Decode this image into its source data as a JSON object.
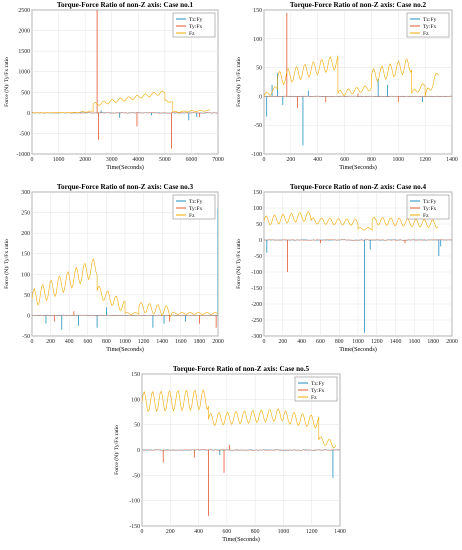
{
  "figure": {
    "panels": [
      {
        "id": "case1",
        "title": "Torque-Force Ratio of non-Z axis: Case no.1",
        "xlabel": "Time(Seconds)",
        "ylabel": "Force (N)/ Ty/Fx ratio"
      },
      {
        "id": "case2",
        "title": "Torque-Force Ratio of non-Z axis: Case no.2",
        "xlabel": "Time(Seconds)",
        "ylabel": "Force (N)/ Ty/Fx ratio"
      },
      {
        "id": "case3",
        "title": "Torque-Force Ratio of non-Z axis: Case no.3",
        "xlabel": "Time(Seconds)",
        "ylabel": "Force (N)/ Ty/Fx ratio"
      },
      {
        "id": "case4",
        "title": "Torque-Force Ratio of non-Z axis: Case no.4",
        "xlabel": "Time(Seconds)",
        "ylabel": "Force (N)/ Ty/Fx ratio"
      },
      {
        "id": "case5",
        "title": "Torque-Force Ratio of non-Z axis: Case no.5",
        "xlabel": "Time(Seconds)",
        "ylabel": "Force (N)/ Ty/Fx ratio"
      }
    ]
  },
  "colors": {
    "tz_fy": "#1f8fbf",
    "ty_fx": "#e4572e",
    "fz": "#f2a900"
  },
  "chart_data": [
    {
      "type": "line",
      "title": "Torque-Force Ratio of non-Z axis: Case no.1",
      "xlabel": "Time(Seconds)",
      "ylabel": "Force (N)/ Ty/Fx ratio",
      "xlim": [
        0,
        7000
      ],
      "ylim": [
        -1000,
        2500
      ],
      "xticks": [
        0,
        1000,
        2000,
        3000,
        4000,
        5000,
        6000,
        7000
      ],
      "yticks": [
        -1000,
        -500,
        0,
        500,
        1000,
        1500,
        2000,
        2500
      ],
      "legend_position": "top-right",
      "grid": true,
      "series": [
        {
          "name": "Tz:Fy",
          "color": "#1f8fbf",
          "spikes": [
            [
              3300,
              -120
            ],
            [
              5900,
              -180
            ],
            [
              6200,
              -100
            ],
            [
              2600,
              60
            ],
            [
              4500,
              -60
            ]
          ]
        },
        {
          "name": "Ty:Fx",
          "color": "#e4572e",
          "spikes": [
            [
              2450,
              2500
            ],
            [
              2500,
              -650
            ],
            [
              3950,
              -330
            ],
            [
              5250,
              -870
            ],
            [
              6300,
              -100
            ]
          ]
        },
        {
          "name": "Fz",
          "color": "#f2a900",
          "segments": [
            [
              0,
              0,
              1500,
              5,
              0
            ],
            [
              1500,
              0,
              2300,
              40,
              20
            ],
            [
              2300,
              200,
              5000,
              500,
              90
            ],
            [
              5000,
              300,
              5300,
              250,
              40
            ],
            [
              5300,
              20,
              6700,
              60,
              30
            ]
          ]
        }
      ]
    },
    {
      "type": "line",
      "title": "Torque-Force Ratio of non-Z axis: Case no.2",
      "xlabel": "Time(Seconds)",
      "ylabel": "Force (N)/ Ty/Fx ratio",
      "xlim": [
        0,
        1400
      ],
      "ylim": [
        -100,
        150
      ],
      "xticks": [
        0,
        200,
        400,
        600,
        800,
        1000,
        1200,
        1400
      ],
      "yticks": [
        -100,
        -50,
        0,
        50,
        100,
        150
      ],
      "legend_position": "top-right",
      "grid": true,
      "series": [
        {
          "name": "Tz:Fy",
          "color": "#1f8fbf",
          "spikes": [
            [
              20,
              -35
            ],
            [
              60,
              20
            ],
            [
              100,
              40
            ],
            [
              140,
              -15
            ],
            [
              290,
              -85
            ],
            [
              330,
              10
            ],
            [
              850,
              30
            ],
            [
              920,
              20
            ],
            [
              1180,
              -10
            ]
          ]
        },
        {
          "name": "Ty:Fx",
          "color": "#e4572e",
          "spikes": [
            [
              170,
              145
            ],
            [
              250,
              -20
            ],
            [
              460,
              -10
            ],
            [
              700,
              5
            ],
            [
              1000,
              -10
            ]
          ]
        },
        {
          "name": "Fz",
          "color": "#f2a900",
          "segments": [
            [
              0,
              0,
              100,
              15,
              10
            ],
            [
              100,
              30,
              550,
              60,
              25
            ],
            [
              550,
              5,
              800,
              15,
              10
            ],
            [
              800,
              35,
              1100,
              55,
              25
            ],
            [
              1100,
              5,
              1200,
              20,
              10
            ],
            [
              1200,
              0,
              1300,
              40,
              15
            ]
          ]
        }
      ]
    },
    {
      "type": "line",
      "title": "Torque-Force Ratio of non-Z axis: Case no.3",
      "xlabel": "Time(Seconds)",
      "ylabel": "Force (N)/ Ty/Fx ratio",
      "xlim": [
        0,
        2000
      ],
      "ylim": [
        -50,
        300
      ],
      "xticks": [
        0,
        200,
        400,
        600,
        800,
        1000,
        1200,
        1400,
        1600,
        1800,
        2000
      ],
      "yticks": [
        -50,
        0,
        50,
        100,
        150,
        200,
        250,
        300
      ],
      "legend_position": "top-right",
      "grid": true,
      "series": [
        {
          "name": "Tz:Fy",
          "color": "#1f8fbf",
          "spikes": [
            [
              150,
              -20
            ],
            [
              320,
              -35
            ],
            [
              500,
              -25
            ],
            [
              700,
              -30
            ],
            [
              800,
              20
            ],
            [
              1300,
              -30
            ],
            [
              1420,
              -20
            ],
            [
              1650,
              -15
            ],
            [
              2000,
              260
            ]
          ]
        },
        {
          "name": "Ty:Fx",
          "color": "#e4572e",
          "spikes": [
            [
              240,
              -15
            ],
            [
              450,
              10
            ],
            [
              1480,
              -15
            ],
            [
              1800,
              -20
            ],
            [
              1980,
              -30
            ]
          ]
        },
        {
          "name": "Fz",
          "color": "#f2a900",
          "segments": [
            [
              0,
              40,
              700,
              120,
              45
            ],
            [
              700,
              60,
              1000,
              20,
              30
            ],
            [
              1000,
              5,
              1150,
              5,
              5
            ],
            [
              1150,
              20,
              1500,
              10,
              25
            ],
            [
              1500,
              5,
              2000,
              5,
              5
            ]
          ]
        }
      ]
    },
    {
      "type": "line",
      "title": "Torque-Force Ratio of non-Z axis: Case no.4",
      "xlabel": "Time(Seconds)",
      "ylabel": "Force (N)/ Ty/Fx ratio",
      "xlim": [
        0,
        2000
      ],
      "ylim": [
        -300,
        150
      ],
      "xticks": [
        0,
        200,
        400,
        600,
        800,
        1000,
        1200,
        1400,
        1600,
        1800,
        2000
      ],
      "yticks": [
        -300,
        -250,
        -200,
        -150,
        -100,
        -50,
        0,
        50,
        100,
        150
      ],
      "legend_position": "top-right",
      "grid": true,
      "series": [
        {
          "name": "Tz:Fy",
          "color": "#1f8fbf",
          "spikes": [
            [
              30,
              -40
            ],
            [
              1070,
              -290
            ],
            [
              1130,
              -30
            ],
            [
              1860,
              -50
            ],
            [
              1880,
              -20
            ]
          ]
        },
        {
          "name": "Ty:Fx",
          "color": "#e4572e",
          "spikes": [
            [
              250,
              -100
            ],
            [
              600,
              -10
            ],
            [
              1500,
              -10
            ]
          ]
        },
        {
          "name": "Fz",
          "color": "#f2a900",
          "segments": [
            [
              0,
              60,
              500,
              75,
              30
            ],
            [
              500,
              60,
              1000,
              55,
              20
            ],
            [
              1000,
              35,
              1150,
              35,
              8
            ],
            [
              1150,
              60,
              1850,
              50,
              25
            ]
          ]
        }
      ]
    },
    {
      "type": "line",
      "title": "Torque-Force Ratio of non-Z axis: Case no.5",
      "xlabel": "Time(Seconds)",
      "ylabel": "Force (N)/ Ty/Fx ratio",
      "xlim": [
        0,
        1400
      ],
      "ylim": [
        -150,
        150
      ],
      "xticks": [
        0,
        200,
        400,
        600,
        800,
        1000,
        1200,
        1400
      ],
      "yticks": [
        -150,
        -100,
        -50,
        0,
        50,
        100,
        150
      ],
      "legend_position": "top-right",
      "grid": true,
      "series": [
        {
          "name": "Tz:Fy",
          "color": "#1f8fbf",
          "spikes": [
            [
              1350,
              -55
            ],
            [
              550,
              -10
            ]
          ]
        },
        {
          "name": "Ty:Fx",
          "color": "#e4572e",
          "spikes": [
            [
              150,
              -25
            ],
            [
              370,
              -15
            ],
            [
              470,
              -130
            ],
            [
              580,
              -45
            ],
            [
              620,
              10
            ]
          ]
        },
        {
          "name": "Fz",
          "color": "#f2a900",
          "segments": [
            [
              0,
              95,
              470,
              100,
              40
            ],
            [
              470,
              60,
              1000,
              70,
              25
            ],
            [
              1000,
              65,
              1250,
              55,
              25
            ],
            [
              1250,
              20,
              1370,
              10,
              15
            ]
          ]
        }
      ]
    }
  ]
}
